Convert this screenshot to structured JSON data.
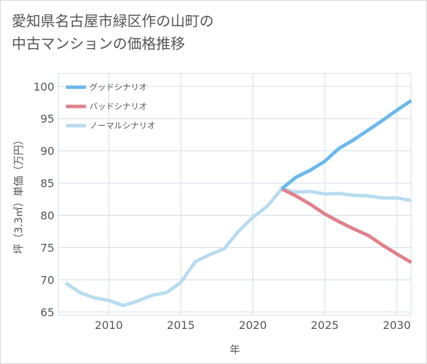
{
  "title_lines": [
    "愛知県名古屋市緑区作の山町の",
    "中古マンションの価格推移"
  ],
  "chart_data": {
    "type": "line",
    "xlabel": "年",
    "ylabel": "坪（3.3㎡）単価（万円）",
    "xlim": [
      2006.5,
      2031
    ],
    "ylim": [
      64.5,
      102
    ],
    "xticks": [
      2010,
      2015,
      2020,
      2025,
      2030
    ],
    "yticks": [
      65,
      70,
      75,
      80,
      85,
      90,
      95,
      100
    ],
    "grid": true,
    "legend_position": "top-left",
    "series": [
      {
        "name": "グッドシナリオ",
        "color": "#6ab8ee",
        "x": [
          2022,
          2023,
          2024,
          2025,
          2026,
          2027,
          2028,
          2029,
          2030,
          2031
        ],
        "y": [
          84.1,
          85.9,
          87.0,
          88.4,
          90.4,
          91.7,
          93.2,
          94.7,
          96.3,
          97.8
        ]
      },
      {
        "name": "バッドシナリオ",
        "color": "#e0808a",
        "x": [
          2022,
          2023,
          2024,
          2025,
          2026,
          2027,
          2028,
          2029,
          2030,
          2031
        ],
        "y": [
          84.1,
          83.0,
          81.7,
          80.2,
          79.0,
          77.9,
          76.9,
          75.4,
          74.0,
          72.7
        ]
      },
      {
        "name": "ノーマルシナリオ",
        "color": "#b8dcf0",
        "x": [
          2007,
          2008,
          2009,
          2010,
          2011,
          2012,
          2013,
          2014,
          2015,
          2016,
          2017,
          2018,
          2019,
          2020,
          2021,
          2022,
          2023,
          2024,
          2025,
          2026,
          2027,
          2028,
          2029,
          2030,
          2031
        ],
        "y": [
          69.5,
          68.0,
          67.2,
          66.8,
          66.0,
          66.7,
          67.6,
          68.0,
          69.6,
          72.8,
          73.9,
          74.8,
          77.5,
          79.7,
          81.4,
          84.1,
          83.6,
          83.7,
          83.3,
          83.4,
          83.1,
          83.0,
          82.7,
          82.7,
          82.3
        ]
      }
    ]
  }
}
